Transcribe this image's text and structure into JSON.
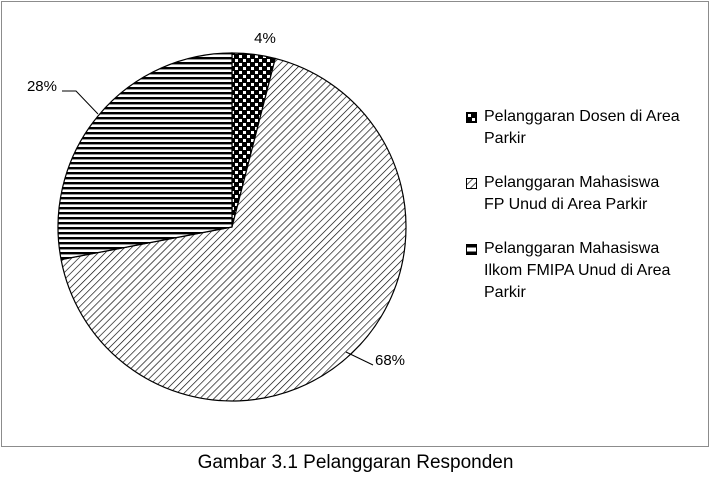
{
  "chart_data": {
    "type": "pie",
    "categories": [
      "Pelanggaran Dosen di Area Parkir",
      "Pelanggaran Mahasiswa FP Unud di Area Parkir",
      "Pelanggaran Mahasiswa Ilkom FMIPA Unud di Area Parkir"
    ],
    "values": [
      4,
      68,
      28
    ],
    "labels": [
      "4%",
      "68%",
      "28%"
    ],
    "patterns": [
      "checker",
      "diagonal-hatch",
      "horizontal-stripes"
    ],
    "legend_position": "right",
    "legend": [
      {
        "lines": [
          "Pelanggaran Dosen di Area",
          "Parkir"
        ]
      },
      {
        "lines": [
          "Pelanggaran Mahasiswa",
          "FP Unud di Area Parkir"
        ]
      },
      {
        "lines": [
          "Pelanggaran Mahasiswa",
          "Ilkom FMIPA Unud di Area",
          "Parkir"
        ]
      }
    ]
  },
  "caption": "Gambar 3.1 Pelanggaran Responden"
}
